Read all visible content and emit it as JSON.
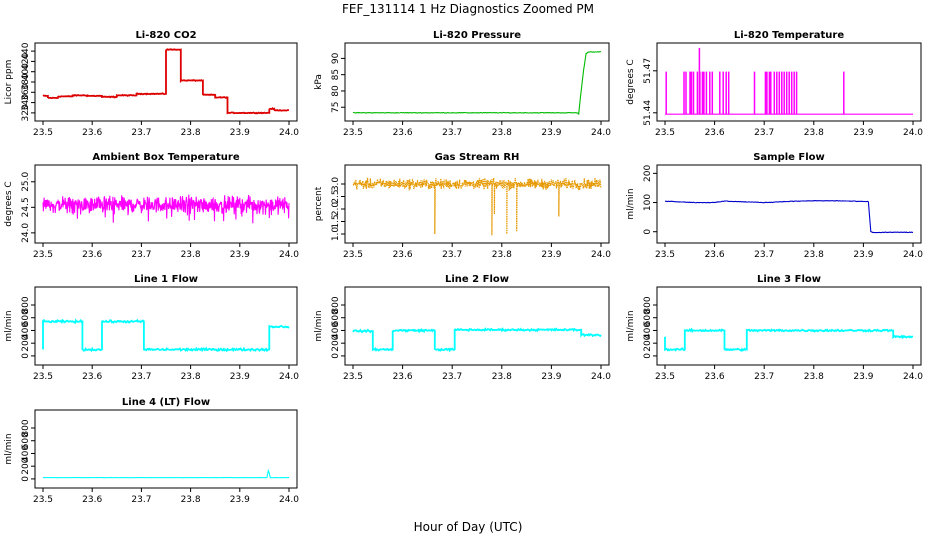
{
  "figure": {
    "title": "FEF_131114  1 Hz Diagnostics Zoomed PM",
    "xlabel": "Hour of Day (UTC)"
  },
  "chart_data": [
    {
      "type": "line",
      "title": "Li-820 CO2",
      "ylabel": "Licor ppm",
      "color": "#dd0000",
      "xlim": [
        23.5,
        24.0
      ],
      "xticks": [
        23.5,
        23.6,
        23.7,
        23.8,
        23.9,
        24.0
      ],
      "ylim": [
        312,
        448
      ],
      "yticks": [
        320,
        340,
        360,
        380,
        400,
        420,
        440
      ],
      "style": "step",
      "noise": 1.2,
      "x": [
        23.5,
        23.51,
        23.51,
        23.53,
        23.53,
        23.56,
        23.56,
        23.59,
        23.59,
        23.62,
        23.62,
        23.65,
        23.65,
        23.69,
        23.69,
        23.75,
        23.75,
        23.78,
        23.78,
        23.8,
        23.8,
        23.825,
        23.825,
        23.85,
        23.85,
        23.875,
        23.875,
        23.96,
        23.96,
        23.97,
        23.97,
        24.0
      ],
      "y": [
        353,
        353,
        349,
        349,
        352,
        352,
        354,
        354,
        353,
        353,
        351,
        351,
        354,
        354,
        357,
        357,
        443,
        443,
        383,
        383,
        383,
        383,
        355,
        355,
        350,
        350,
        320,
        320,
        328,
        328,
        325,
        325
      ]
    },
    {
      "type": "line",
      "title": "Li-820 Pressure",
      "ylabel": "kPa",
      "color": "#00bb00",
      "xlim": [
        23.5,
        24.0
      ],
      "xticks": [
        23.5,
        23.6,
        23.7,
        23.8,
        23.9,
        24.0
      ],
      "ylim": [
        72,
        93.5
      ],
      "yticks": [
        75,
        80,
        85,
        90
      ],
      "style": "line",
      "noise": 0.15,
      "x": [
        23.5,
        23.95,
        23.955,
        23.96,
        23.965,
        23.97,
        23.975,
        24.0
      ],
      "y": [
        73.3,
        73.3,
        73.0,
        80.0,
        86.5,
        91.5,
        92.0,
        92.0
      ]
    },
    {
      "type": "line",
      "title": "Li-820 Temperature",
      "ylabel": "degrees C",
      "color": "#ff00ff",
      "xlim": [
        23.5,
        24.0
      ],
      "xticks": [
        23.5,
        23.6,
        23.7,
        23.8,
        23.9,
        24.0
      ],
      "ylim": [
        51.437,
        51.487
      ],
      "yticks": [
        51.44,
        51.47
      ],
      "style": "spikes",
      "base": 51.439,
      "spike_value": 51.469,
      "spikes": [
        23.502,
        23.538,
        23.542,
        23.55,
        23.553,
        23.557,
        23.565,
        23.57,
        23.575,
        23.578,
        23.583,
        23.59,
        23.595,
        23.61,
        23.617,
        23.623,
        23.628,
        23.68,
        23.702,
        23.705,
        23.71,
        23.713,
        23.72,
        23.725,
        23.73,
        23.735,
        23.74,
        23.745,
        23.75,
        23.755,
        23.76,
        23.765,
        23.86
      ],
      "tall_spikes": [
        23.569
      ]
    },
    {
      "type": "line",
      "title": "Ambient Box Temperature",
      "ylabel": "degrees C",
      "color": "#ff00ff",
      "xlim": [
        23.5,
        24.0
      ],
      "xticks": [
        23.5,
        23.6,
        23.7,
        23.8,
        23.9,
        24.0
      ],
      "ylim": [
        23.88,
        25.25
      ],
      "yticks": [
        24.0,
        24.5,
        25.0
      ],
      "style": "noise",
      "mean": 24.55,
      "amplitude": 0.23,
      "dips": 0.35
    },
    {
      "type": "line",
      "title": "Gas Stream RH",
      "ylabel": "percent",
      "color": "#e69900",
      "xlim": [
        23.5,
        24.0
      ],
      "xticks": [
        23.5,
        23.6,
        23.7,
        23.8,
        23.9,
        24.0
      ],
      "ylim": [
        0.8,
        3.6
      ],
      "yticks": [
        1.0,
        1.5,
        2.0,
        2.5,
        3.0
      ],
      "style": "noise_dots",
      "mean": 3.0,
      "amplitude": 0.3,
      "dip_x": [
        23.665,
        23.78,
        23.785,
        23.81,
        23.83,
        23.915
      ],
      "dip_y": [
        1.0,
        0.95,
        1.8,
        1.0,
        1.1,
        1.7
      ]
    },
    {
      "type": "line",
      "title": "Sample Flow",
      "ylabel": "ml/min",
      "color": "#0000cc",
      "xlim": [
        23.5,
        24.0
      ],
      "xticks": [
        23.5,
        23.6,
        23.7,
        23.8,
        23.9,
        24.0
      ],
      "ylim": [
        -25,
        215
      ],
      "yticks": [
        0,
        100,
        200
      ],
      "style": "line",
      "noise": 1.5,
      "x": [
        23.5,
        23.56,
        23.6,
        23.62,
        23.65,
        23.7,
        23.75,
        23.8,
        23.85,
        23.91,
        23.915,
        23.92,
        23.95,
        24.0
      ],
      "y": [
        105,
        100,
        100,
        105,
        103,
        100,
        104,
        106,
        106,
        103,
        0,
        -3,
        -2,
        -2
      ]
    },
    {
      "type": "line",
      "title": "Line 1 Flow",
      "ylabel": "ml/min",
      "color": "#00ffff",
      "xlim": [
        23.5,
        24.0
      ],
      "xticks": [
        23.5,
        23.6,
        23.7,
        23.8,
        23.9,
        24.0
      ],
      "ylim": [
        -80,
        1020
      ],
      "yticks": [
        0,
        200,
        400,
        600,
        800
      ],
      "style": "step",
      "noise": 25,
      "x": [
        23.5,
        23.5,
        23.58,
        23.58,
        23.62,
        23.62,
        23.705,
        23.705,
        23.96,
        23.96,
        24.0
      ],
      "y": [
        100,
        540,
        540,
        100,
        100,
        540,
        540,
        100,
        100,
        460,
        460
      ]
    },
    {
      "type": "line",
      "title": "Line 2 Flow",
      "ylabel": "ml/min",
      "color": "#00ffff",
      "xlim": [
        23.5,
        24.0
      ],
      "xticks": [
        23.5,
        23.6,
        23.7,
        23.8,
        23.9,
        24.0
      ],
      "ylim": [
        -80,
        1020
      ],
      "yticks": [
        0,
        200,
        400,
        600,
        800
      ],
      "style": "step",
      "noise": 22,
      "x": [
        23.5,
        23.54,
        23.54,
        23.58,
        23.58,
        23.665,
        23.665,
        23.705,
        23.705,
        23.96,
        23.96,
        24.0
      ],
      "y": [
        390,
        390,
        100,
        100,
        400,
        400,
        100,
        100,
        410,
        410,
        330,
        330
      ]
    },
    {
      "type": "line",
      "title": "Line 3 Flow",
      "ylabel": "ml/min",
      "color": "#00ffff",
      "xlim": [
        23.5,
        24.0
      ],
      "xticks": [
        23.5,
        23.6,
        23.7,
        23.8,
        23.9,
        24.0
      ],
      "ylim": [
        -80,
        1020
      ],
      "yticks": [
        0,
        200,
        400,
        600,
        800
      ],
      "style": "step",
      "noise": 22,
      "x": [
        23.5,
        23.5,
        23.54,
        23.54,
        23.62,
        23.62,
        23.665,
        23.665,
        23.96,
        23.96,
        24.0
      ],
      "y": [
        300,
        100,
        100,
        400,
        400,
        100,
        100,
        400,
        400,
        300,
        300
      ]
    },
    {
      "type": "line",
      "title": "Line 4 (LT) Flow",
      "ylabel": "ml/min",
      "color": "#00ffff",
      "xlim": [
        23.5,
        24.0
      ],
      "xticks": [
        23.5,
        23.6,
        23.7,
        23.8,
        23.9,
        24.0
      ],
      "ylim": [
        -80,
        1020
      ],
      "yticks": [
        0,
        200,
        400,
        600,
        800
      ],
      "style": "line",
      "noise": 3,
      "x": [
        23.5,
        23.955,
        23.958,
        23.96,
        23.962,
        24.0
      ],
      "y": [
        20,
        20,
        130,
        90,
        20,
        20
      ]
    }
  ]
}
